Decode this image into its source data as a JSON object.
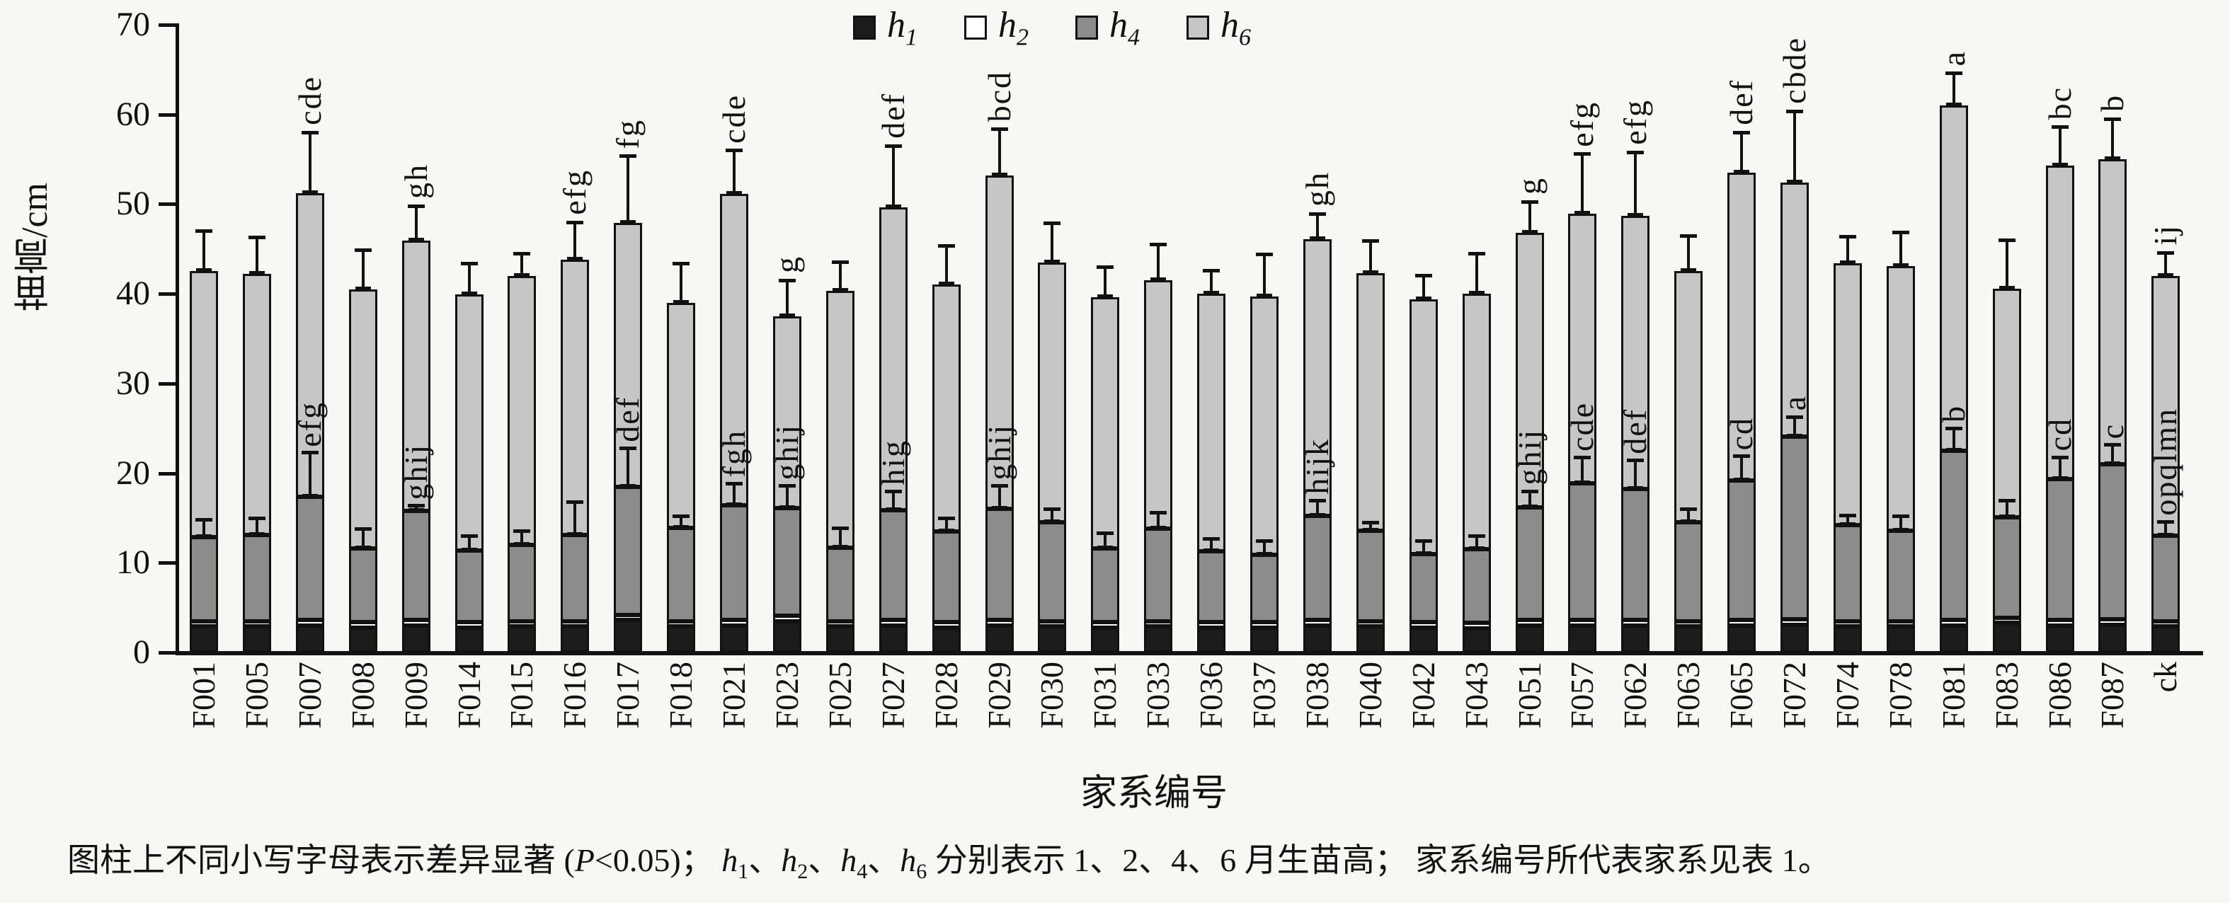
{
  "chart_data": {
    "type": "bar",
    "stacked": true,
    "ylabel": "苗高/cm",
    "xlabel": "家系编号",
    "ylim": [
      0,
      70
    ],
    "yticks": [
      0,
      10,
      20,
      30,
      40,
      50,
      60,
      70
    ],
    "grid": false,
    "legend_position": "top-center",
    "legend": [
      {
        "id": "h1",
        "label": "h",
        "sub": "1",
        "color": "#1c1c1c"
      },
      {
        "id": "h2",
        "label": "h",
        "sub": "2",
        "color": "#ffffff"
      },
      {
        "id": "h4",
        "label": "h",
        "sub": "4",
        "color": "#8c8c8c"
      },
      {
        "id": "h6",
        "label": "h",
        "sub": "6",
        "color": "#c6c6c6"
      }
    ],
    "colors": {
      "h1": "#1c1c1c",
      "h2": "#ffffff",
      "h4": "#8c8c8c",
      "h6": "#c6c6c6",
      "axis": "#111111",
      "background": "#f7f7f4"
    },
    "value_note": "cumulative seedling height (cm) at months 1,2,4,6; *_err = top of error whisker; sig_* = significance letters",
    "bars": [
      {
        "family": "F001",
        "h1_top": 2.9,
        "h2_top": 3.5,
        "h4_top": 12.9,
        "h4_err": 14.8,
        "h6_total": 42.5,
        "h6_err": 47.0,
        "sig_h4": "",
        "sig_total": ""
      },
      {
        "family": "F005",
        "h1_top": 2.9,
        "h2_top": 3.5,
        "h4_top": 13.1,
        "h4_err": 15.0,
        "h6_total": 42.2,
        "h6_err": 46.3,
        "sig_h4": "",
        "sig_total": ""
      },
      {
        "family": "F007",
        "h1_top": 3.0,
        "h2_top": 3.6,
        "h4_top": 17.4,
        "h4_err": 22.3,
        "h6_total": 51.2,
        "h6_err": 58.0,
        "sig_h4": "efg",
        "sig_total": "cde"
      },
      {
        "family": "F008",
        "h1_top": 2.8,
        "h2_top": 3.4,
        "h4_top": 11.6,
        "h4_err": 13.8,
        "h6_total": 40.5,
        "h6_err": 44.9,
        "sig_h4": "",
        "sig_total": ""
      },
      {
        "family": "F009",
        "h1_top": 3.0,
        "h2_top": 3.6,
        "h4_top": 15.8,
        "h4_err": 16.4,
        "h6_total": 45.9,
        "h6_err": 49.8,
        "sig_h4": "ghij",
        "sig_total": "gh"
      },
      {
        "family": "F014",
        "h1_top": 2.8,
        "h2_top": 3.4,
        "h4_top": 11.4,
        "h4_err": 13.0,
        "h6_total": 39.9,
        "h6_err": 43.4,
        "sig_h4": "",
        "sig_total": ""
      },
      {
        "family": "F015",
        "h1_top": 2.9,
        "h2_top": 3.5,
        "h4_top": 12.0,
        "h4_err": 13.6,
        "h6_total": 42.0,
        "h6_err": 44.5,
        "sig_h4": "",
        "sig_total": ""
      },
      {
        "family": "F016",
        "h1_top": 2.9,
        "h2_top": 3.5,
        "h4_top": 13.1,
        "h4_err": 16.8,
        "h6_total": 43.8,
        "h6_err": 48.0,
        "sig_h4": "",
        "sig_total": "efg"
      },
      {
        "family": "F017",
        "h1_top": 3.6,
        "h2_top": 4.2,
        "h4_top": 18.5,
        "h4_err": 22.8,
        "h6_total": 47.9,
        "h6_err": 55.4,
        "sig_h4": "def",
        "sig_total": "fg"
      },
      {
        "family": "F018",
        "h1_top": 2.9,
        "h2_top": 3.5,
        "h4_top": 13.9,
        "h4_err": 15.2,
        "h6_total": 39.0,
        "h6_err": 43.4,
        "sig_h4": "",
        "sig_total": ""
      },
      {
        "family": "F021",
        "h1_top": 3.0,
        "h2_top": 3.6,
        "h4_top": 16.4,
        "h4_err": 18.9,
        "h6_total": 51.1,
        "h6_err": 56.0,
        "sig_h4": "fgh",
        "sig_total": "cde"
      },
      {
        "family": "F023",
        "h1_top": 3.5,
        "h2_top": 4.1,
        "h4_top": 16.1,
        "h4_err": 18.6,
        "h6_total": 37.5,
        "h6_err": 41.5,
        "sig_h4": "ghij",
        "sig_total": "g"
      },
      {
        "family": "F025",
        "h1_top": 2.9,
        "h2_top": 3.5,
        "h4_top": 11.7,
        "h4_err": 13.9,
        "h6_total": 40.3,
        "h6_err": 43.6,
        "sig_h4": "",
        "sig_total": ""
      },
      {
        "family": "F027",
        "h1_top": 3.0,
        "h2_top": 3.6,
        "h4_top": 15.9,
        "h4_err": 18.0,
        "h6_total": 49.6,
        "h6_err": 56.5,
        "sig_h4": "hig",
        "sig_total": "def"
      },
      {
        "family": "F028",
        "h1_top": 2.8,
        "h2_top": 3.4,
        "h4_top": 13.5,
        "h4_err": 15.0,
        "h6_total": 41.0,
        "h6_err": 45.4,
        "sig_h4": "",
        "sig_total": ""
      },
      {
        "family": "F029",
        "h1_top": 3.0,
        "h2_top": 3.6,
        "h4_top": 16.0,
        "h4_err": 18.6,
        "h6_total": 53.2,
        "h6_err": 58.4,
        "sig_h4": "ghij",
        "sig_total": "bcd"
      },
      {
        "family": "F030",
        "h1_top": 2.9,
        "h2_top": 3.5,
        "h4_top": 14.5,
        "h4_err": 16.0,
        "h6_total": 43.5,
        "h6_err": 47.9,
        "sig_h4": "",
        "sig_total": ""
      },
      {
        "family": "F031",
        "h1_top": 2.8,
        "h2_top": 3.4,
        "h4_top": 11.6,
        "h4_err": 13.3,
        "h6_total": 39.6,
        "h6_err": 43.0,
        "sig_h4": "",
        "sig_total": ""
      },
      {
        "family": "F033",
        "h1_top": 2.9,
        "h2_top": 3.5,
        "h4_top": 13.8,
        "h4_err": 15.6,
        "h6_total": 41.5,
        "h6_err": 45.5,
        "sig_h4": "",
        "sig_total": ""
      },
      {
        "family": "F036",
        "h1_top": 2.8,
        "h2_top": 3.4,
        "h4_top": 11.3,
        "h4_err": 12.7,
        "h6_total": 40.0,
        "h6_err": 42.6,
        "sig_h4": "",
        "sig_total": ""
      },
      {
        "family": "F037",
        "h1_top": 2.8,
        "h2_top": 3.4,
        "h4_top": 10.9,
        "h4_err": 12.5,
        "h6_total": 39.7,
        "h6_err": 44.4,
        "sig_h4": "",
        "sig_total": ""
      },
      {
        "family": "F038",
        "h1_top": 3.0,
        "h2_top": 3.6,
        "h4_top": 15.2,
        "h4_err": 17.0,
        "h6_total": 46.1,
        "h6_err": 48.9,
        "sig_h4": "hijk",
        "sig_total": "gh"
      },
      {
        "family": "F040",
        "h1_top": 2.9,
        "h2_top": 3.5,
        "h4_top": 13.6,
        "h4_err": 14.5,
        "h6_total": 42.3,
        "h6_err": 45.9,
        "sig_h4": "",
        "sig_total": ""
      },
      {
        "family": "F042",
        "h1_top": 2.8,
        "h2_top": 3.4,
        "h4_top": 11.0,
        "h4_err": 12.5,
        "h6_total": 39.4,
        "h6_err": 42.1,
        "sig_h4": "",
        "sig_total": ""
      },
      {
        "family": "F043",
        "h1_top": 2.7,
        "h2_top": 3.3,
        "h4_top": 11.5,
        "h4_err": 13.0,
        "h6_total": 40.0,
        "h6_err": 44.5,
        "sig_h4": "",
        "sig_total": ""
      },
      {
        "family": "F051",
        "h1_top": 3.0,
        "h2_top": 3.6,
        "h4_top": 16.2,
        "h4_err": 18.0,
        "h6_total": 46.8,
        "h6_err": 50.3,
        "sig_h4": "ghij",
        "sig_total": "g"
      },
      {
        "family": "F057",
        "h1_top": 3.0,
        "h2_top": 3.6,
        "h4_top": 18.9,
        "h4_err": 21.8,
        "h6_total": 48.9,
        "h6_err": 55.6,
        "sig_h4": "cde",
        "sig_total": "efg"
      },
      {
        "family": "F062",
        "h1_top": 3.0,
        "h2_top": 3.6,
        "h4_top": 18.2,
        "h4_err": 21.5,
        "h6_total": 48.7,
        "h6_err": 55.8,
        "sig_h4": "def",
        "sig_total": "efg"
      },
      {
        "family": "F063",
        "h1_top": 2.9,
        "h2_top": 3.5,
        "h4_top": 14.5,
        "h4_err": 16.0,
        "h6_total": 42.5,
        "h6_err": 46.5,
        "sig_h4": "",
        "sig_total": ""
      },
      {
        "family": "F065",
        "h1_top": 3.0,
        "h2_top": 3.6,
        "h4_top": 19.2,
        "h4_err": 21.9,
        "h6_total": 53.5,
        "h6_err": 58.0,
        "sig_h4": "cd",
        "sig_total": "def"
      },
      {
        "family": "F072",
        "h1_top": 3.1,
        "h2_top": 3.7,
        "h4_top": 24.1,
        "h4_err": 26.3,
        "h6_total": 52.4,
        "h6_err": 60.4,
        "sig_h4": "a",
        "sig_total": "cbde"
      },
      {
        "family": "F074",
        "h1_top": 2.9,
        "h2_top": 3.5,
        "h4_top": 14.2,
        "h4_err": 15.3,
        "h6_total": 43.4,
        "h6_err": 46.4,
        "sig_h4": "",
        "sig_total": ""
      },
      {
        "family": "F078",
        "h1_top": 2.9,
        "h2_top": 3.5,
        "h4_top": 13.6,
        "h4_err": 15.2,
        "h6_total": 43.1,
        "h6_err": 46.9,
        "sig_h4": "",
        "sig_total": ""
      },
      {
        "family": "F081",
        "h1_top": 3.0,
        "h2_top": 3.6,
        "h4_top": 22.5,
        "h4_err": 25.0,
        "h6_total": 61.0,
        "h6_err": 64.6,
        "sig_h4": "b",
        "sig_total": "a"
      },
      {
        "family": "F083",
        "h1_top": 3.3,
        "h2_top": 3.9,
        "h4_top": 15.1,
        "h4_err": 17.0,
        "h6_total": 40.6,
        "h6_err": 46.0,
        "sig_h4": "",
        "sig_total": ""
      },
      {
        "family": "F086",
        "h1_top": 3.0,
        "h2_top": 3.6,
        "h4_top": 19.3,
        "h4_err": 21.8,
        "h6_total": 54.3,
        "h6_err": 58.6,
        "sig_h4": "cd",
        "sig_total": "bc"
      },
      {
        "family": "F087",
        "h1_top": 3.1,
        "h2_top": 3.7,
        "h4_top": 21.0,
        "h4_err": 23.2,
        "h6_total": 55.0,
        "h6_err": 59.5,
        "sig_h4": "c",
        "sig_total": "b"
      },
      {
        "family": "ck",
        "h1_top": 2.9,
        "h2_top": 3.5,
        "h4_top": 13.0,
        "h4_err": 14.6,
        "h6_total": 42.0,
        "h6_err": 44.6,
        "sig_h4": "opqlmn",
        "sig_total": "ij"
      }
    ]
  },
  "caption_parts": [
    {
      "t": "图柱上不同小写字母表示差异显著 ("
    },
    {
      "i": "P"
    },
    {
      "t": "<0.05)； "
    },
    {
      "h": "1"
    },
    {
      "t": "、"
    },
    {
      "h": "2"
    },
    {
      "t": "、"
    },
    {
      "h": "4"
    },
    {
      "t": "、"
    },
    {
      "h": "6"
    },
    {
      "t": " 分别表示 1、2、4、6 月生苗高； 家系编号所代表家系见表 1。"
    }
  ]
}
